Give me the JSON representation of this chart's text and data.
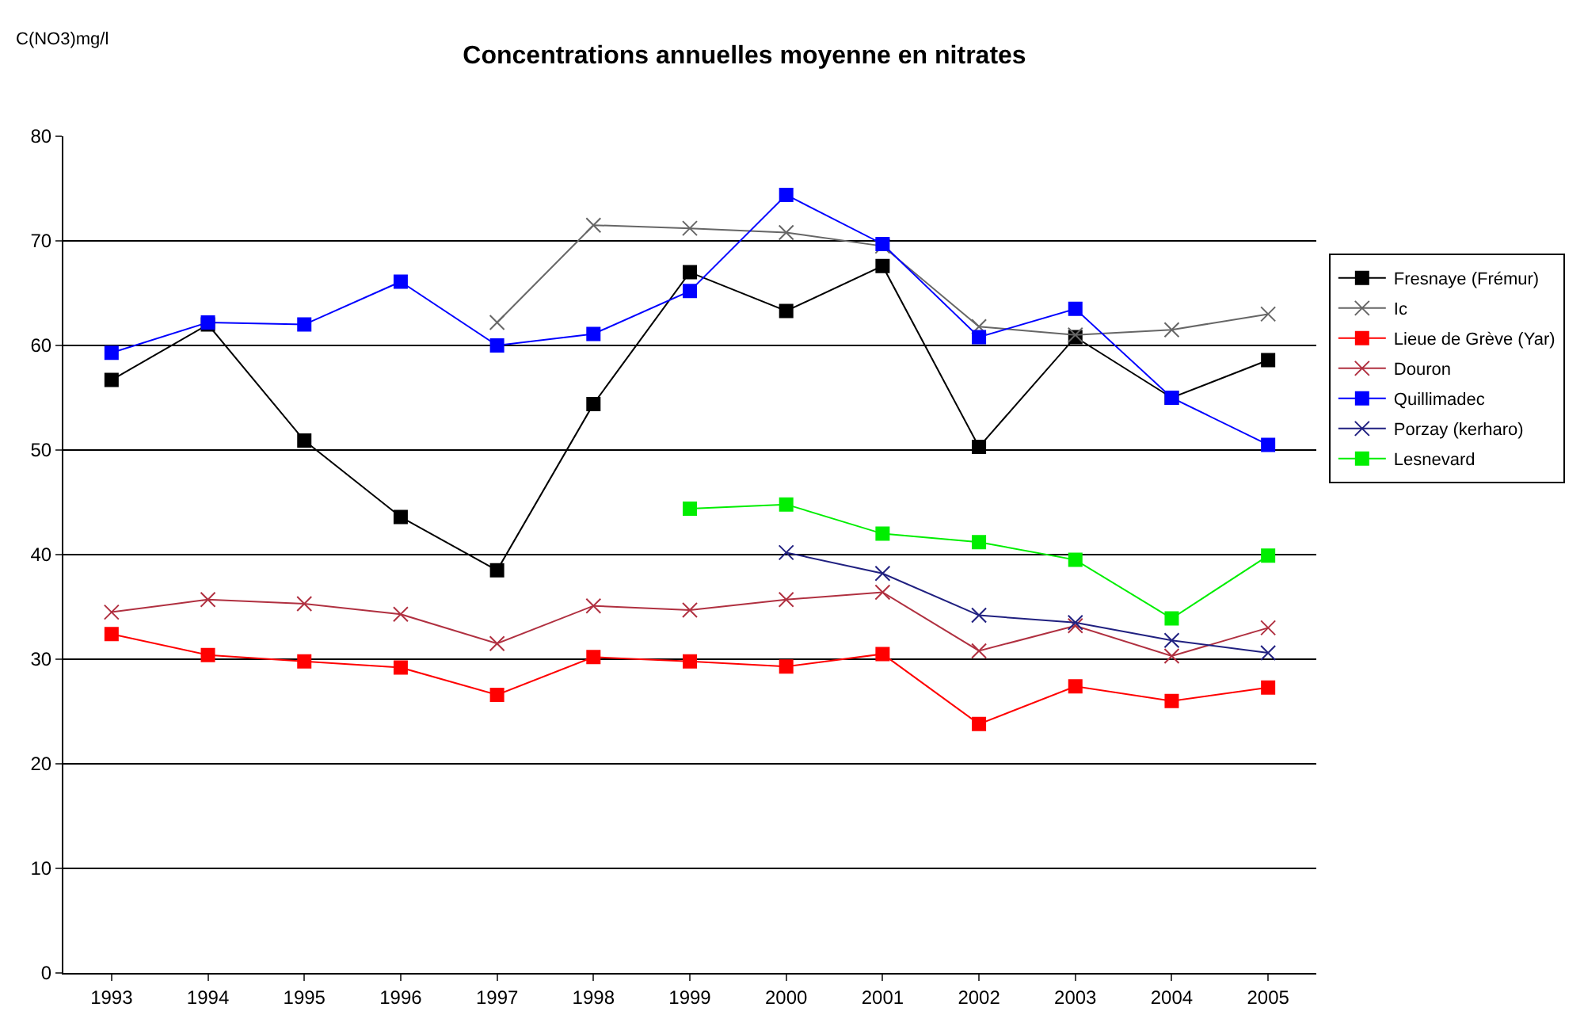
{
  "chart_data": {
    "type": "line",
    "title": "Concentrations annuelles moyenne en nitrates",
    "ylabel": "C(NO3)mg/l",
    "categories": [
      "1993",
      "1994",
      "1995",
      "1996",
      "1997",
      "1998",
      "1999",
      "2000",
      "2001",
      "2002",
      "2003",
      "2004",
      "2005"
    ],
    "ylim": [
      0,
      80
    ],
    "yticks": [
      0,
      10,
      20,
      30,
      40,
      50,
      60,
      70,
      80
    ],
    "grid": "y",
    "legend": "right",
    "series": [
      {
        "name": "Fresnaye (Frémur)",
        "color": "#000000",
        "marker": "square",
        "values": [
          56.7,
          62,
          50.9,
          43.6,
          38.5,
          54.4,
          67,
          63.3,
          67.6,
          50.3,
          60.8,
          55,
          58.6
        ]
      },
      {
        "name": "Ic",
        "color": "#666666",
        "marker": "cross",
        "values": [
          null,
          null,
          null,
          null,
          62.2,
          71.5,
          71.2,
          70.8,
          69.5,
          61.8,
          61,
          61.5,
          63
        ]
      },
      {
        "name": "Lieue de Grève (Yar)",
        "color": "#ff0000",
        "marker": "square",
        "values": [
          32.4,
          30.4,
          29.8,
          29.2,
          26.6,
          30.2,
          29.8,
          29.3,
          30.5,
          23.8,
          27.4,
          26,
          27.3
        ]
      },
      {
        "name": "Douron",
        "color": "#b03040",
        "marker": "cross",
        "values": [
          34.5,
          35.7,
          35.3,
          34.3,
          31.5,
          35.1,
          34.7,
          35.7,
          36.4,
          30.8,
          33.2,
          30.3,
          33
        ]
      },
      {
        "name": "Quillimadec",
        "color": "#0000ff",
        "marker": "square",
        "values": [
          59.3,
          62.2,
          62,
          66.1,
          60,
          61.1,
          65.2,
          74.4,
          69.7,
          60.8,
          63.5,
          55,
          50.5
        ]
      },
      {
        "name": "Porzay (kerharo)",
        "color": "#202080",
        "marker": "cross",
        "values": [
          null,
          null,
          null,
          null,
          null,
          null,
          null,
          40.2,
          38.2,
          34.2,
          33.5,
          31.8,
          30.6
        ]
      },
      {
        "name": "Lesnevard",
        "color": "#00ee00",
        "marker": "square",
        "values": [
          null,
          null,
          null,
          null,
          null,
          null,
          44.4,
          44.8,
          42,
          41.2,
          39.5,
          33.9,
          39.9
        ]
      }
    ]
  }
}
